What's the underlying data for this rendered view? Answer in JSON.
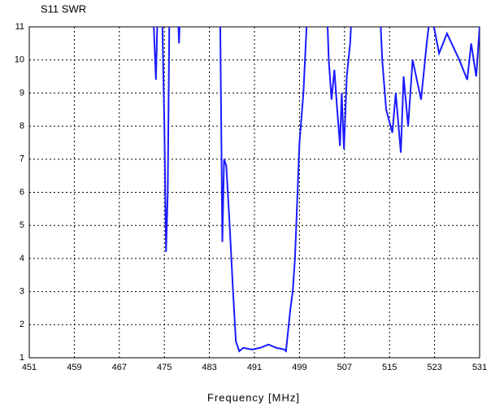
{
  "chart_data": {
    "type": "line",
    "title": "S11 SWR",
    "x_label": "Frequency [MHz]",
    "x": [
      473.0,
      473.5,
      473.8,
      474.6,
      475.0,
      475.3,
      475.6,
      475.9,
      477.4,
      477.6,
      477.8,
      484.9,
      485.3,
      485.6,
      486.0,
      486.6,
      487.2,
      487.7,
      488.3,
      489.0,
      490.6,
      492.0,
      493.5,
      494.9,
      496.3,
      496.6,
      497.4,
      497.8,
      498.2,
      499.0,
      499.7,
      500.4,
      503.9,
      504.2,
      504.7,
      505.2,
      505.7,
      506.2,
      506.5,
      506.9,
      507.4,
      508.0,
      508.3,
      513.3,
      513.7,
      514.4,
      515.5,
      516.1,
      517.0,
      517.5,
      518.3,
      519.1,
      520.6,
      521.6,
      522.3,
      523.8,
      525.2,
      527.4,
      528.8,
      529.5,
      530.4,
      531.0
    ],
    "series": [
      {
        "name": "S11 SWR",
        "color": "#1a1aff",
        "values": [
          11.5,
          9.4,
          11.5,
          11.5,
          8,
          4.2,
          6,
          11.5,
          11.5,
          10.5,
          11.5,
          11.5,
          4.5,
          7,
          6.8,
          5,
          3,
          1.5,
          1.2,
          1.3,
          1.25,
          1.3,
          1.4,
          1.3,
          1.25,
          1.2,
          2.5,
          3,
          4,
          7.5,
          9,
          11.5,
          11.5,
          10,
          8.8,
          9.7,
          8.5,
          7.4,
          9,
          7.3,
          9.5,
          10.5,
          11.5,
          11.5,
          10,
          8.5,
          7.8,
          9,
          7.2,
          9.5,
          8,
          10,
          8.8,
          10.5,
          11.5,
          10.2,
          10.8,
          10,
          9.4,
          10.5,
          9.5,
          11
        ]
      }
    ],
    "xlim": [
      451,
      531
    ],
    "xticks": [
      451,
      459,
      467,
      475,
      483,
      491,
      499,
      507,
      515,
      523,
      531
    ],
    "ylim": [
      1,
      11
    ],
    "yticks": [
      1,
      2,
      3,
      4,
      5,
      6,
      7,
      8,
      9,
      10,
      11
    ],
    "grid": true
  }
}
